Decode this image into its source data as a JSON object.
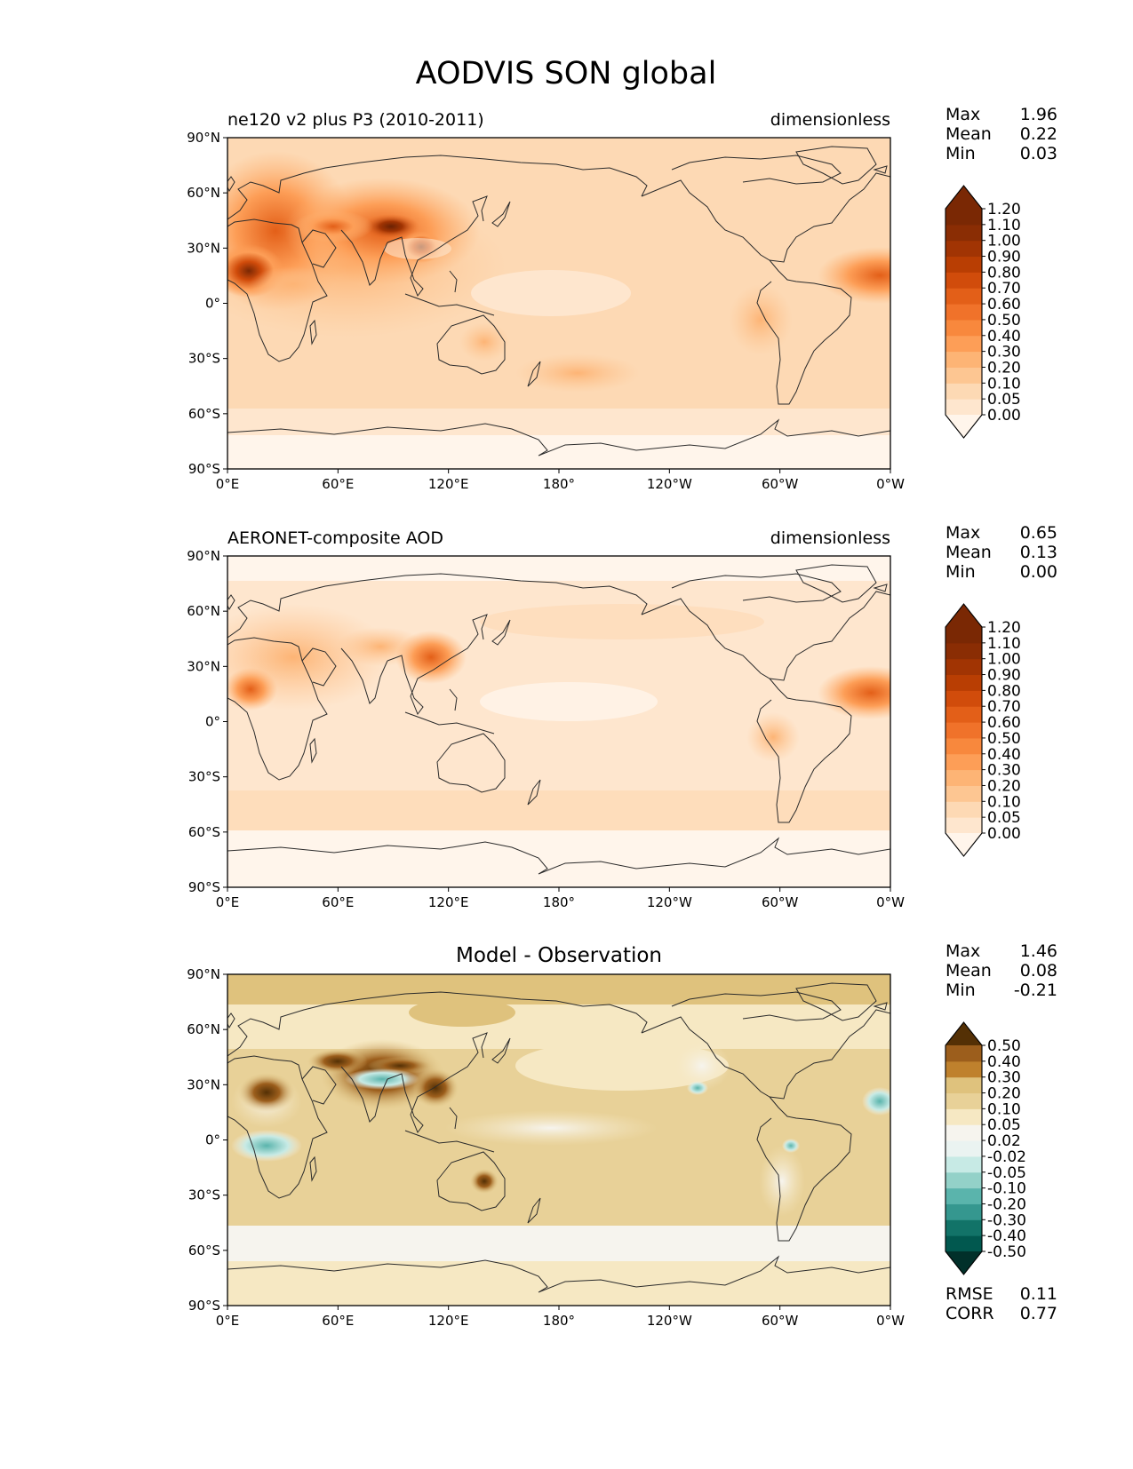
{
  "figure_title": "AODVIS SON global",
  "chart_data": [
    {
      "type": "heatmap",
      "title_left": "ne120 v2 plus P3 (2010-2011)",
      "title_right": "dimensionless",
      "xticks": [
        "0°E",
        "60°E",
        "120°E",
        "180°",
        "120°W",
        "60°W",
        "0°W"
      ],
      "yticks": [
        "90°N",
        "60°N",
        "30°N",
        "0°",
        "30°S",
        "60°S",
        "90°S"
      ],
      "xlim": [
        0,
        360
      ],
      "ylim": [
        -90,
        90
      ],
      "stats": [
        {
          "label": "Max",
          "value": "1.96"
        },
        {
          "label": "Mean",
          "value": "0.22"
        },
        {
          "label": "Min",
          "value": "0.03"
        }
      ],
      "colorbar": {
        "levels": [
          "0.00",
          "0.05",
          "0.10",
          "0.20",
          "0.30",
          "0.40",
          "0.50",
          "0.60",
          "0.70",
          "0.80",
          "0.90",
          "1.00",
          "1.10",
          "1.20"
        ],
        "colors": [
          "#fff5eb",
          "#fee6ce",
          "#fdd9b4",
          "#fdc692",
          "#fdb475",
          "#fd9e57",
          "#f8883d",
          "#f0722a",
          "#e35f18",
          "#d14c0b",
          "#b93e03",
          "#a13403",
          "#8a2d04",
          "#7a2804"
        ],
        "extend": "both"
      }
    },
    {
      "type": "heatmap",
      "title_left": "AERONET-composite AOD",
      "title_right": "dimensionless",
      "xticks": [
        "0°E",
        "60°E",
        "120°E",
        "180°",
        "120°W",
        "60°W",
        "0°W"
      ],
      "yticks": [
        "90°N",
        "60°N",
        "30°N",
        "0°",
        "30°S",
        "60°S",
        "90°S"
      ],
      "xlim": [
        0,
        360
      ],
      "ylim": [
        -90,
        90
      ],
      "stats": [
        {
          "label": "Max",
          "value": "0.65"
        },
        {
          "label": "Mean",
          "value": "0.13"
        },
        {
          "label": "Min",
          "value": "0.00"
        }
      ],
      "colorbar": {
        "levels": [
          "0.00",
          "0.05",
          "0.10",
          "0.20",
          "0.30",
          "0.40",
          "0.50",
          "0.60",
          "0.70",
          "0.80",
          "0.90",
          "1.00",
          "1.10",
          "1.20"
        ],
        "colors": [
          "#fff5eb",
          "#fee6ce",
          "#fdd9b4",
          "#fdc692",
          "#fdb475",
          "#fd9e57",
          "#f8883d",
          "#f0722a",
          "#e35f18",
          "#d14c0b",
          "#b93e03",
          "#a13403",
          "#8a2d04",
          "#7a2804"
        ],
        "extend": "both"
      }
    },
    {
      "type": "heatmap",
      "title_center": "Model - Observation",
      "xticks": [
        "0°E",
        "60°E",
        "120°E",
        "180°",
        "120°W",
        "60°W",
        "0°W"
      ],
      "yticks": [
        "90°N",
        "60°N",
        "30°N",
        "0°",
        "30°S",
        "60°S",
        "90°S"
      ],
      "xlim": [
        0,
        360
      ],
      "ylim": [
        -90,
        90
      ],
      "stats": [
        {
          "label": "Max",
          "value": "1.46"
        },
        {
          "label": "Mean",
          "value": "0.08"
        },
        {
          "label": "Min",
          "value": "-0.21"
        }
      ],
      "extra_stats": [
        {
          "label": "RMSE",
          "value": "0.11"
        },
        {
          "label": "CORR",
          "value": "0.77"
        }
      ],
      "colorbar": {
        "levels": [
          "-0.50",
          "-0.40",
          "-0.30",
          "-0.20",
          "-0.10",
          "-0.05",
          "-0.02",
          "0.02",
          "0.05",
          "0.10",
          "0.20",
          "0.30",
          "0.40",
          "0.50"
        ],
        "colors": [
          "#01302a",
          "#01584f",
          "#127368",
          "#35978f",
          "#5ab4ac",
          "#93d1c8",
          "#c7eae5",
          "#eaf3f1",
          "#f6f4ee",
          "#f6e8c3",
          "#e8d198",
          "#dfc27d",
          "#bf812d",
          "#9c5e1c",
          "#543005"
        ],
        "extend": "both"
      }
    }
  ]
}
